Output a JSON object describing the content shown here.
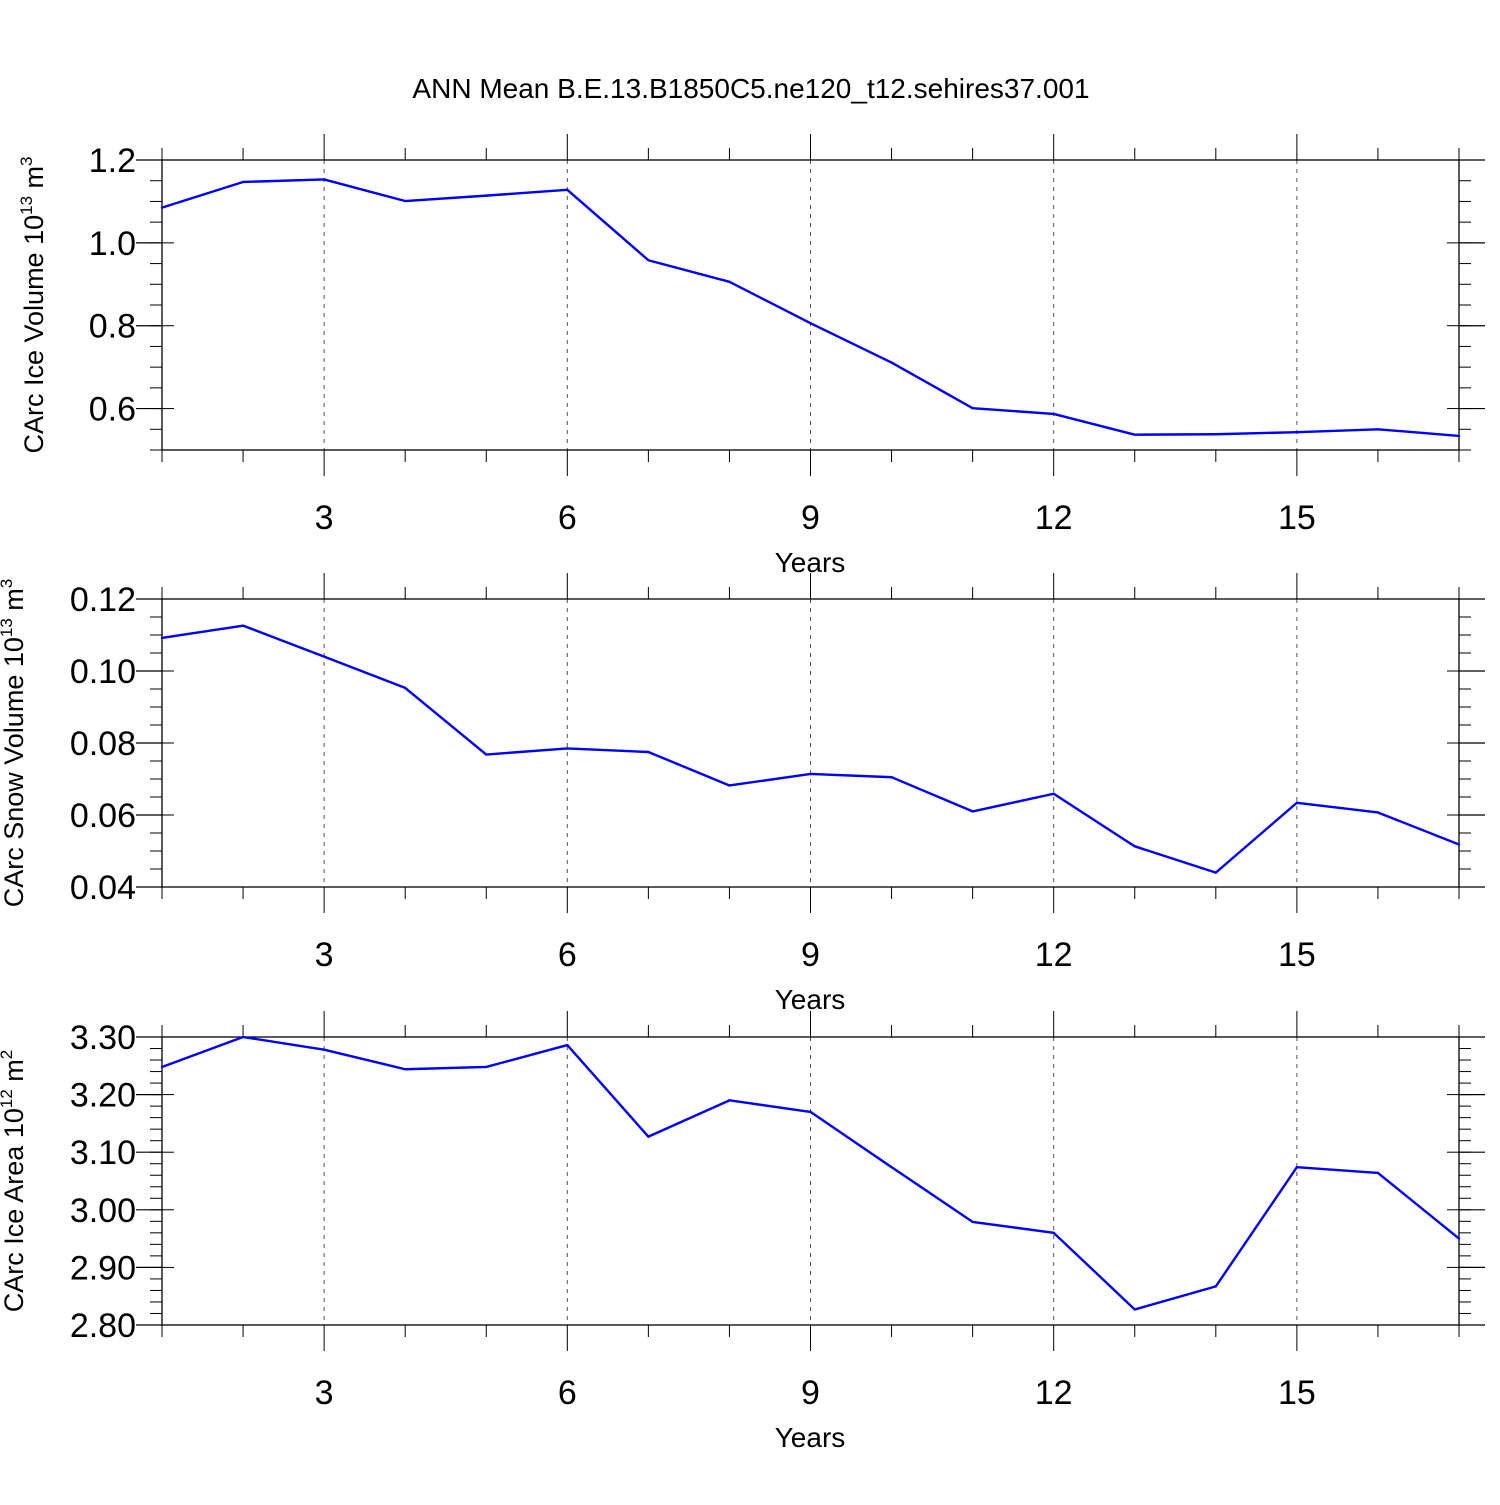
{
  "title": "ANN Mean B.E.13.B1850C5.ne120_t12.sehires37.001",
  "colors": {
    "line": "#0000ff",
    "axis": "#000000",
    "grid": "#555555"
  },
  "chart_data": [
    {
      "type": "line",
      "ylabel_main": "CArc Ice Volume 10",
      "ylabel_exp": "13",
      "ylabel_unit": " m",
      "ylabel_unit_exp": "3",
      "xlabel": "Years",
      "xlim": [
        1,
        17
      ],
      "ylim": [
        0.5,
        1.2
      ],
      "yticks": [
        0.6,
        0.8,
        1.0,
        1.2
      ],
      "ytick_labels": [
        "0.6",
        "0.8",
        "1.0",
        "1.2"
      ],
      "yminor_step": 0.05,
      "xticks": [
        3,
        6,
        9,
        12,
        15
      ],
      "xtick_labels": [
        "3",
        "6",
        "9",
        "12",
        "15"
      ],
      "grid_x": true,
      "x": [
        1,
        2,
        3,
        4,
        5,
        6,
        7,
        8,
        9,
        10,
        11,
        12,
        13,
        14,
        15,
        16,
        17
      ],
      "values": [
        1.085,
        1.147,
        1.153,
        1.101,
        1.114,
        1.128,
        0.958,
        0.906,
        0.806,
        0.711,
        0.601,
        0.587,
        0.537,
        0.538,
        0.543,
        0.55,
        0.534
      ]
    },
    {
      "type": "line",
      "ylabel_main": "CArc Snow Volume 10",
      "ylabel_exp": "13",
      "ylabel_unit": " m",
      "ylabel_unit_exp": "3",
      "xlabel": "Years",
      "xlim": [
        1,
        17
      ],
      "ylim": [
        0.04,
        0.12
      ],
      "yticks": [
        0.04,
        0.06,
        0.08,
        0.1,
        0.12
      ],
      "ytick_labels": [
        "0.04",
        "0.06",
        "0.08",
        "0.10",
        "0.12"
      ],
      "yminor_step": 0.005,
      "xticks": [
        3,
        6,
        9,
        12,
        15
      ],
      "xtick_labels": [
        "3",
        "6",
        "9",
        "12",
        "15"
      ],
      "grid_x": true,
      "x": [
        1,
        2,
        3,
        4,
        5,
        6,
        7,
        8,
        9,
        10,
        11,
        12,
        13,
        14,
        15,
        16,
        17
      ],
      "values": [
        0.1092,
        0.1126,
        0.104,
        0.0953,
        0.0768,
        0.0785,
        0.0775,
        0.0682,
        0.0714,
        0.0705,
        0.061,
        0.0659,
        0.0513,
        0.044,
        0.0634,
        0.0607,
        0.0518
      ]
    },
    {
      "type": "line",
      "ylabel_main": "CArc Ice Area 10",
      "ylabel_exp": "12",
      "ylabel_unit": " m",
      "ylabel_unit_exp": "2",
      "xlabel": "Years",
      "xlim": [
        1,
        17
      ],
      "ylim": [
        2.8,
        3.3
      ],
      "yticks": [
        2.8,
        2.9,
        3.0,
        3.1,
        3.2,
        3.3
      ],
      "ytick_labels": [
        "2.80",
        "2.90",
        "3.00",
        "3.10",
        "3.20",
        "3.30"
      ],
      "yminor_step": 0.02,
      "xticks": [
        3,
        6,
        9,
        12,
        15
      ],
      "xtick_labels": [
        "3",
        "6",
        "9",
        "12",
        "15"
      ],
      "grid_x": true,
      "x": [
        1,
        2,
        3,
        4,
        5,
        6,
        7,
        8,
        9,
        10,
        11,
        12,
        13,
        14,
        15,
        16,
        17
      ],
      "values": [
        3.248,
        3.3,
        3.278,
        3.244,
        3.248,
        3.286,
        3.127,
        3.19,
        3.17,
        3.074,
        2.979,
        2.96,
        2.827,
        2.867,
        3.074,
        3.064,
        2.95
      ]
    }
  ]
}
